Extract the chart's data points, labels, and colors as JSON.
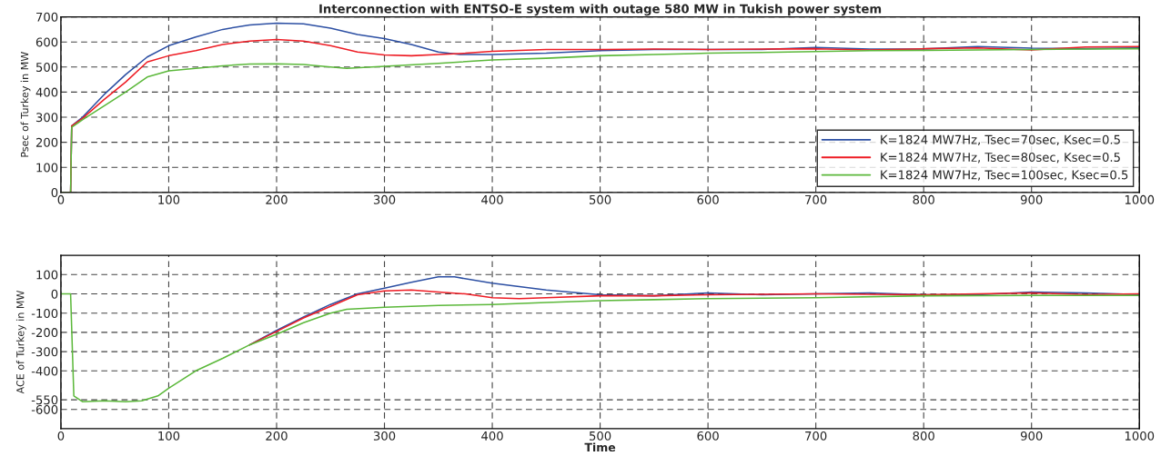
{
  "chart_data": [
    {
      "type": "line",
      "title": "Interconnection with ENTSO-E system with outage 580 MW in Tukish power system",
      "ylabel": "Psec of Turkey in MW",
      "xlim": [
        0,
        1000
      ],
      "xticks": [
        0,
        100,
        200,
        300,
        400,
        500,
        600,
        700,
        800,
        900,
        1000
      ],
      "ylim": [
        0,
        700
      ],
      "yticks": [
        0,
        100,
        200,
        300,
        400,
        500,
        600,
        700
      ],
      "grid": true,
      "legend": "bottom right",
      "line_style": "solid",
      "series": [
        {
          "name": "K=1824 MW7Hz, Tsec=70sec, Ksec=0.5",
          "color": "#2c4fa3",
          "x": [
            0,
            9,
            10,
            20,
            40,
            60,
            80,
            100,
            125,
            150,
            175,
            200,
            225,
            250,
            275,
            300,
            325,
            350,
            370,
            400,
            450,
            500,
            550,
            600,
            650,
            700,
            750,
            800,
            850,
            900,
            950,
            1000
          ],
          "values": [
            0,
            0,
            265,
            300,
            390,
            470,
            540,
            585,
            620,
            650,
            668,
            675,
            672,
            655,
            630,
            613,
            590,
            560,
            550,
            550,
            555,
            565,
            570,
            570,
            570,
            578,
            572,
            572,
            582,
            575,
            573,
            576
          ]
        },
        {
          "name": "K=1824 MW7Hz, Tsec=80sec, Ksec=0.5",
          "color": "#ee1c24",
          "x": [
            0,
            9,
            10,
            20,
            40,
            60,
            80,
            100,
            125,
            150,
            175,
            200,
            225,
            250,
            275,
            300,
            325,
            350,
            375,
            400,
            450,
            500,
            550,
            600,
            650,
            700,
            750,
            800,
            850,
            900,
            950,
            1000
          ],
          "values": [
            0,
            0,
            265,
            295,
            370,
            440,
            520,
            545,
            565,
            590,
            603,
            610,
            603,
            585,
            560,
            548,
            545,
            550,
            555,
            563,
            570,
            570,
            572,
            570,
            572,
            573,
            568,
            573,
            576,
            568,
            580,
            582
          ]
        },
        {
          "name": "K=1824 MW7Hz, Tsec=100sec, Ksec=0.5",
          "color": "#5bb83a",
          "x": [
            0,
            9,
            10,
            20,
            40,
            60,
            80,
            100,
            125,
            150,
            175,
            200,
            225,
            250,
            265,
            300,
            350,
            400,
            450,
            500,
            550,
            600,
            650,
            700,
            750,
            800,
            850,
            900,
            950,
            1000
          ],
          "values": [
            0,
            0,
            260,
            290,
            345,
            400,
            460,
            485,
            495,
            505,
            512,
            513,
            510,
            500,
            495,
            503,
            515,
            528,
            535,
            545,
            550,
            555,
            558,
            562,
            565,
            566,
            568,
            570,
            572,
            573
          ]
        }
      ]
    },
    {
      "type": "line",
      "xlabel": "Time",
      "ylabel": "ACE of Turkey in MW",
      "xlim": [
        0,
        1000
      ],
      "xticks": [
        0,
        100,
        200,
        300,
        400,
        500,
        600,
        700,
        800,
        900,
        1000
      ],
      "ylim": [
        -700,
        200
      ],
      "yticks": [
        -600,
        -550,
        -400,
        -300,
        -200,
        -100,
        0,
        100
      ],
      "grid": true,
      "line_style": "solid",
      "series": [
        {
          "color": "#2c4fa3",
          "x": [
            175,
            200,
            225,
            250,
            275,
            300,
            325,
            350,
            365,
            400,
            450,
            500,
            550,
            600,
            650,
            700,
            750,
            800,
            850,
            900,
            950,
            1000
          ],
          "values": [
            -265,
            -190,
            -120,
            -55,
            0,
            30,
            60,
            88,
            88,
            55,
            20,
            -5,
            -10,
            5,
            -5,
            0,
            5,
            -5,
            -5,
            10,
            5,
            -3
          ]
        },
        {
          "color": "#ee1c24",
          "x": [
            175,
            200,
            225,
            250,
            275,
            300,
            325,
            350,
            375,
            400,
            425,
            450,
            500,
            550,
            600,
            700,
            800,
            900,
            950,
            1000
          ],
          "values": [
            -265,
            -195,
            -125,
            -65,
            -5,
            15,
            20,
            10,
            0,
            -20,
            -25,
            -20,
            -10,
            -10,
            -5,
            0,
            -5,
            5,
            -3,
            0
          ]
        },
        {
          "color": "#5bb83a",
          "x": [
            0,
            9,
            12,
            20,
            40,
            60,
            75,
            90,
            100,
            125,
            150,
            175,
            200,
            225,
            250,
            265,
            300,
            350,
            400,
            450,
            500,
            550,
            600,
            700,
            800,
            900,
            1000
          ],
          "values": [
            0,
            0,
            -530,
            -560,
            -555,
            -560,
            -555,
            -530,
            -490,
            -400,
            -335,
            -265,
            -210,
            -150,
            -100,
            -80,
            -70,
            -60,
            -55,
            -45,
            -35,
            -30,
            -25,
            -20,
            -10,
            -8,
            -8
          ]
        }
      ]
    }
  ]
}
